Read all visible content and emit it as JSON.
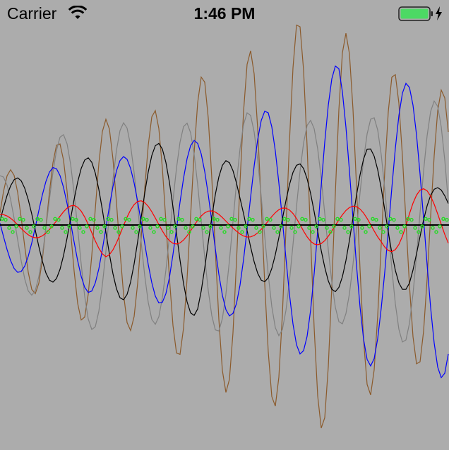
{
  "status_bar": {
    "carrier": "Carrier",
    "time": "1:46 PM",
    "battery_color": "#4cd964"
  },
  "chart_data": {
    "type": "line",
    "title": "",
    "xlabel": "",
    "ylabel": "",
    "grid": false,
    "legend": "none",
    "series": [
      {
        "color": "#8b5a2b",
        "cycle": 34,
        "envelope": [
          [
            0,
            70
          ],
          [
            140,
            150
          ],
          [
            200,
            150
          ],
          [
            270,
            200
          ],
          [
            330,
            245
          ],
          [
            380,
            250
          ],
          [
            420,
            290
          ],
          [
            470,
            290
          ],
          [
            520,
            245
          ],
          [
            575,
            205
          ],
          [
            636,
            190
          ]
        ],
        "phase": 0.25
      },
      {
        "color": "#808080",
        "cycle": 44,
        "envelope": [
          [
            0,
            70
          ],
          [
            120,
            150
          ],
          [
            230,
            140
          ],
          [
            300,
            150
          ],
          [
            340,
            160
          ],
          [
            380,
            160
          ],
          [
            430,
            150
          ],
          [
            490,
            140
          ],
          [
            560,
            165
          ],
          [
            636,
            180
          ]
        ],
        "phase": 1.6
      },
      {
        "color": "#0000ff",
        "cycle": 50,
        "envelope": [
          [
            0,
            60
          ],
          [
            140,
            100
          ],
          [
            200,
            95
          ],
          [
            240,
            120
          ],
          [
            280,
            120
          ],
          [
            330,
            130
          ],
          [
            380,
            165
          ],
          [
            430,
            185
          ],
          [
            480,
            230
          ],
          [
            540,
            190
          ],
          [
            636,
            220
          ]
        ],
        "phase": 3.1
      },
      {
        "color": "#000000",
        "cycle": 50,
        "envelope": [
          [
            0,
            60
          ],
          [
            140,
            100
          ],
          [
            220,
            115
          ],
          [
            280,
            130
          ],
          [
            340,
            75
          ],
          [
            400,
            85
          ],
          [
            460,
            90
          ],
          [
            520,
            110
          ],
          [
            580,
            90
          ],
          [
            636,
            40
          ]
        ],
        "phase": 0.1
      },
      {
        "color": "#ff0000",
        "cycle": 50,
        "envelope": [
          [
            0,
            15
          ],
          [
            80,
            20
          ],
          [
            150,
            45
          ],
          [
            220,
            30
          ],
          [
            270,
            25
          ],
          [
            330,
            15
          ],
          [
            380,
            20
          ],
          [
            430,
            30
          ],
          [
            480,
            25
          ],
          [
            540,
            30
          ],
          [
            580,
            55
          ],
          [
            636,
            45
          ]
        ],
        "phase": 1.55
      }
    ],
    "markers": {
      "color": "#22dd22",
      "cycle": 25,
      "amplitude": 10,
      "phase": 0.3
    },
    "zero_line_color": "#000000"
  }
}
